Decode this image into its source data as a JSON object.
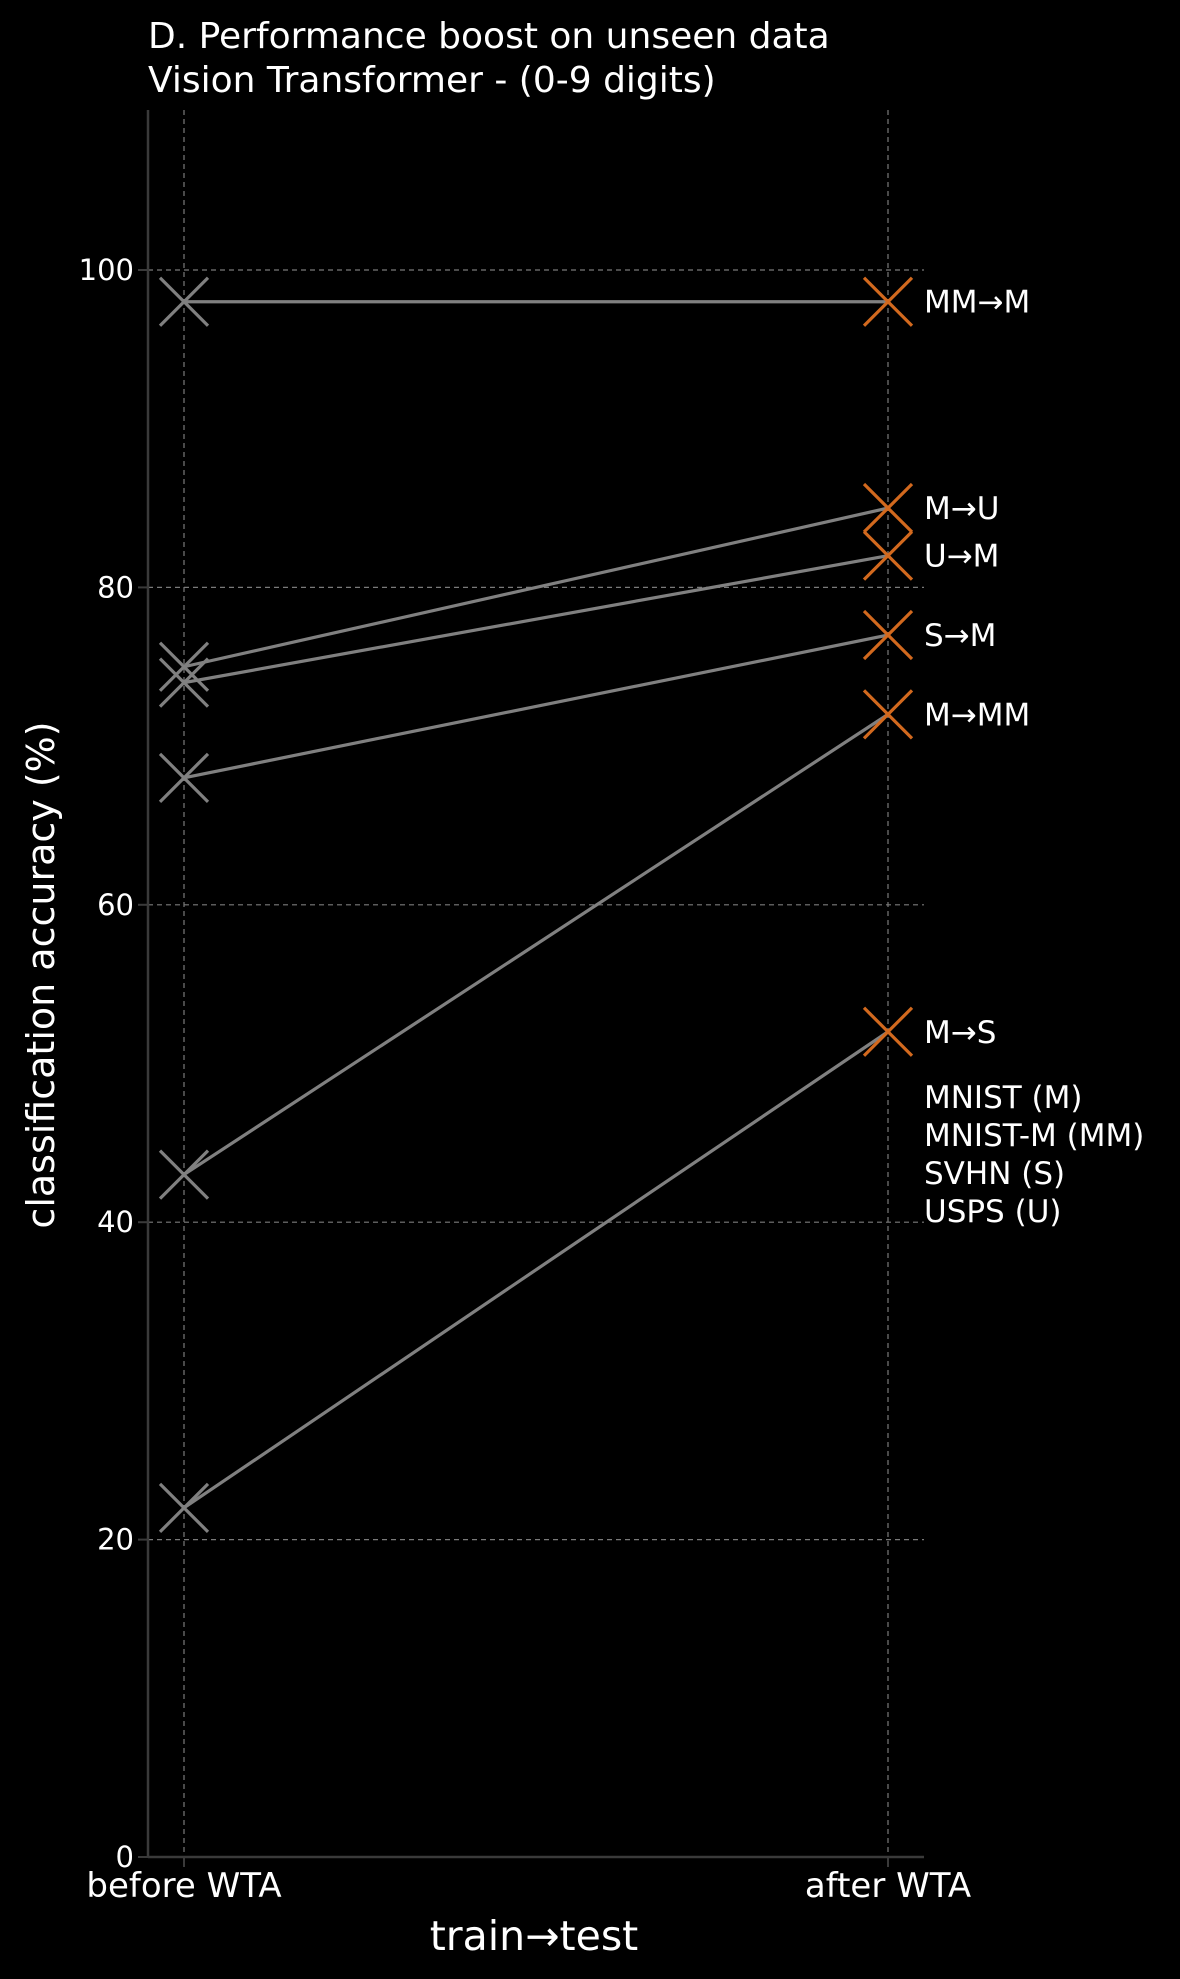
{
  "chart_data": {
    "type": "line",
    "title": "D. Performance boost on unseen data",
    "subtitle": "Vision Transformer - (0-9 digits)",
    "xlabel": "train→test",
    "ylabel": "classification accuracy (%)",
    "categories": [
      "before WTA",
      "after WTA"
    ],
    "ylim": [
      0,
      110
    ],
    "yticks": [
      "0",
      "20",
      "40",
      "60",
      "80",
      "100"
    ],
    "grid": true,
    "series": [
      {
        "name": "MM→M",
        "values": [
          98,
          98
        ]
      },
      {
        "name": "M→U",
        "values": [
          75,
          85
        ]
      },
      {
        "name": "U→M",
        "values": [
          74,
          82
        ]
      },
      {
        "name": "S→M",
        "values": [
          68,
          77
        ]
      },
      {
        "name": "M→MM",
        "values": [
          43,
          72
        ]
      },
      {
        "name": "M→S",
        "values": [
          22,
          52
        ]
      }
    ],
    "legend_notes": [
      "MNIST (M)",
      "MNIST-M (MM)",
      "SVHN (S)",
      "USPS (U)"
    ],
    "colors": {
      "background": "#000000",
      "line": "#808080",
      "marker_before": "#808080",
      "marker_after": "#d2691e",
      "grid": "#7a7a7a",
      "axis": "#3a3a3a",
      "text": "#ffffff"
    }
  }
}
